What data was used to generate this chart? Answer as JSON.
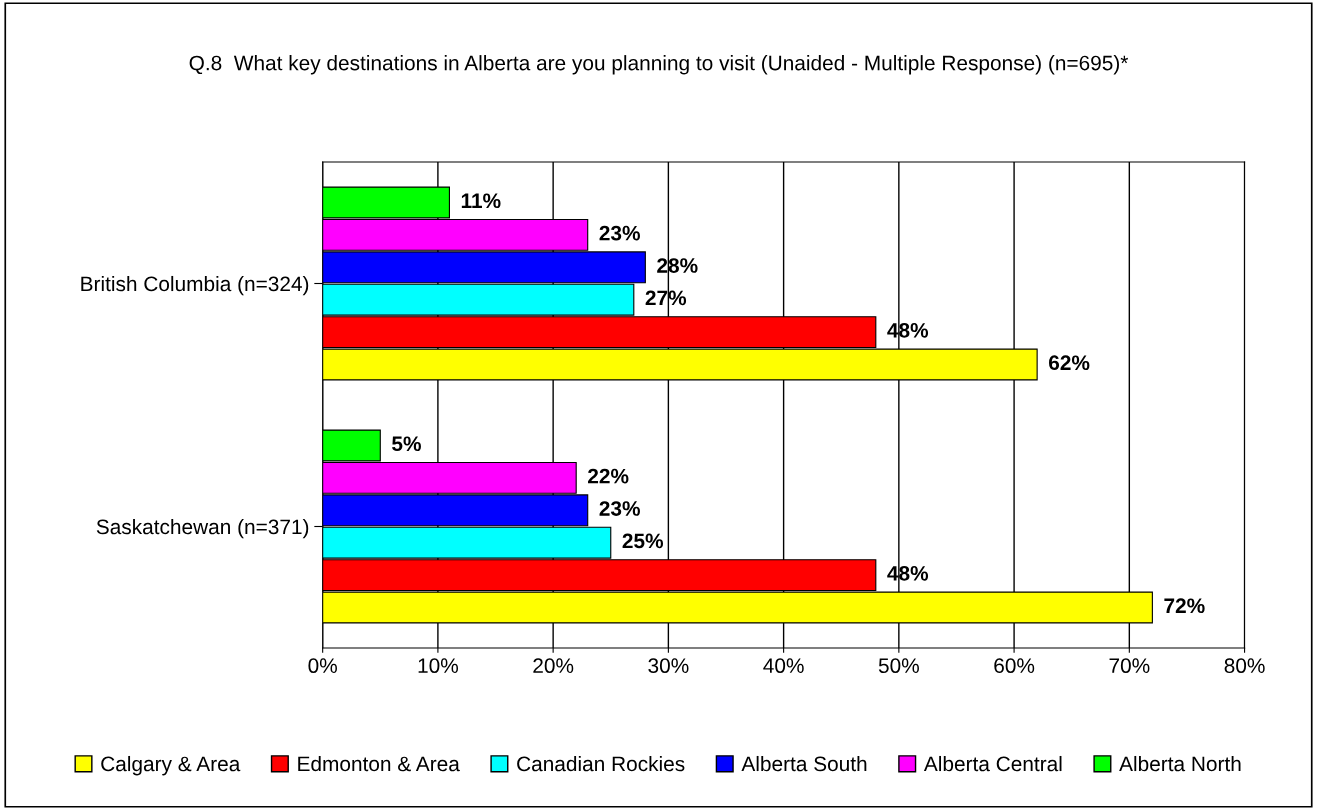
{
  "chart_data": {
    "type": "bar",
    "orientation": "horizontal",
    "title": "Q.8  What key destinations in Alberta are you planning to visit (Unaided - Multiple Response) (n=695)*",
    "categories": [
      "British Columbia (n=324)",
      "Saskatchewan (n=371)"
    ],
    "series": [
      {
        "name": "Calgary & Area",
        "color": "#ffff00",
        "values": [
          62,
          72
        ],
        "value_labels": [
          "62%",
          "72%"
        ]
      },
      {
        "name": "Edmonton & Area",
        "color": "#ff0000",
        "values": [
          48,
          48
        ],
        "value_labels": [
          "48%",
          "48%"
        ]
      },
      {
        "name": "Canadian Rockies",
        "color": "#00ffff",
        "values": [
          27,
          25
        ],
        "value_labels": [
          "27%",
          "25%"
        ]
      },
      {
        "name": "Alberta South",
        "color": "#0000ff",
        "values": [
          28,
          23
        ],
        "value_labels": [
          "28%",
          "23%"
        ]
      },
      {
        "name": "Alberta Central",
        "color": "#ff00ff",
        "values": [
          23,
          22
        ],
        "value_labels": [
          "23%",
          "22%"
        ]
      },
      {
        "name": "Alberta North",
        "color": "#00ff00",
        "values": [
          11,
          5
        ],
        "value_labels": [
          "11%",
          "5%"
        ]
      }
    ],
    "xlim": [
      0,
      80
    ],
    "xticks": [
      {
        "value": 0,
        "label": "0%"
      },
      {
        "value": 10,
        "label": "10%"
      },
      {
        "value": 20,
        "label": "20%"
      },
      {
        "value": 30,
        "label": "30%"
      },
      {
        "value": 40,
        "label": "40%"
      },
      {
        "value": 50,
        "label": "50%"
      },
      {
        "value": 60,
        "label": "60%"
      },
      {
        "value": 70,
        "label": "70%"
      },
      {
        "value": 80,
        "label": "80%"
      }
    ],
    "grid": "x",
    "legend": "bottom"
  }
}
